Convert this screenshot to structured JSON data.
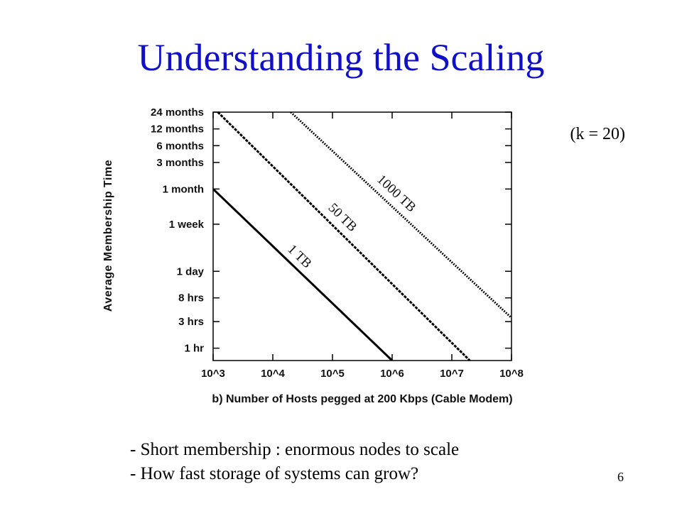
{
  "slide": {
    "title": "Understanding the Scaling",
    "note": "(k = 20)",
    "bullets": [
      "- Short membership : enormous nodes to scale",
      "- How fast storage of systems can grow?"
    ],
    "page_number": "6"
  },
  "chart_data": {
    "type": "line",
    "title": "",
    "xlabel": "b) Number of Hosts pegged at 200 Kbps (Cable Modem)",
    "ylabel": "Average Membership Time",
    "x_scale": "log",
    "y_scale": "log",
    "x_ticks": [
      {
        "value": 1000,
        "label": "10^3"
      },
      {
        "value": 10000,
        "label": "10^4"
      },
      {
        "value": 100000,
        "label": "10^5"
      },
      {
        "value": 1000000,
        "label": "10^6"
      },
      {
        "value": 10000000,
        "label": "10^7"
      },
      {
        "value": 100000000,
        "label": "10^8"
      }
    ],
    "y_ticks": [
      {
        "value": 1,
        "label": "1 hr"
      },
      {
        "value": 3,
        "label": "3 hrs"
      },
      {
        "value": 8,
        "label": "8 hrs"
      },
      {
        "value": 24,
        "label": "1 day"
      },
      {
        "value": 168,
        "label": "1 week"
      },
      {
        "value": 720,
        "label": "1 month"
      },
      {
        "value": 2160,
        "label": "3 months"
      },
      {
        "value": 4320,
        "label": "6 months"
      },
      {
        "value": 8640,
        "label": "12 months"
      },
      {
        "value": 17280,
        "label": "24 months"
      }
    ],
    "xlim": [
      1000,
      100000000
    ],
    "ylim": [
      0.6,
      17280
    ],
    "series": [
      {
        "name": "1 TB",
        "style": "solid",
        "points": [
          [
            1000,
            720
          ],
          [
            1000000,
            0.6
          ]
        ]
      },
      {
        "name": "50 TB",
        "style": "dashed",
        "points": [
          [
            1200,
            17280
          ],
          [
            20000000,
            0.6
          ]
        ]
      },
      {
        "name": "1000 TB",
        "style": "dotted",
        "points": [
          [
            20000,
            17280
          ],
          [
            100000000,
            3.5
          ]
        ]
      }
    ],
    "colors": {
      "line": "#000000",
      "title": "#1010c8"
    }
  }
}
